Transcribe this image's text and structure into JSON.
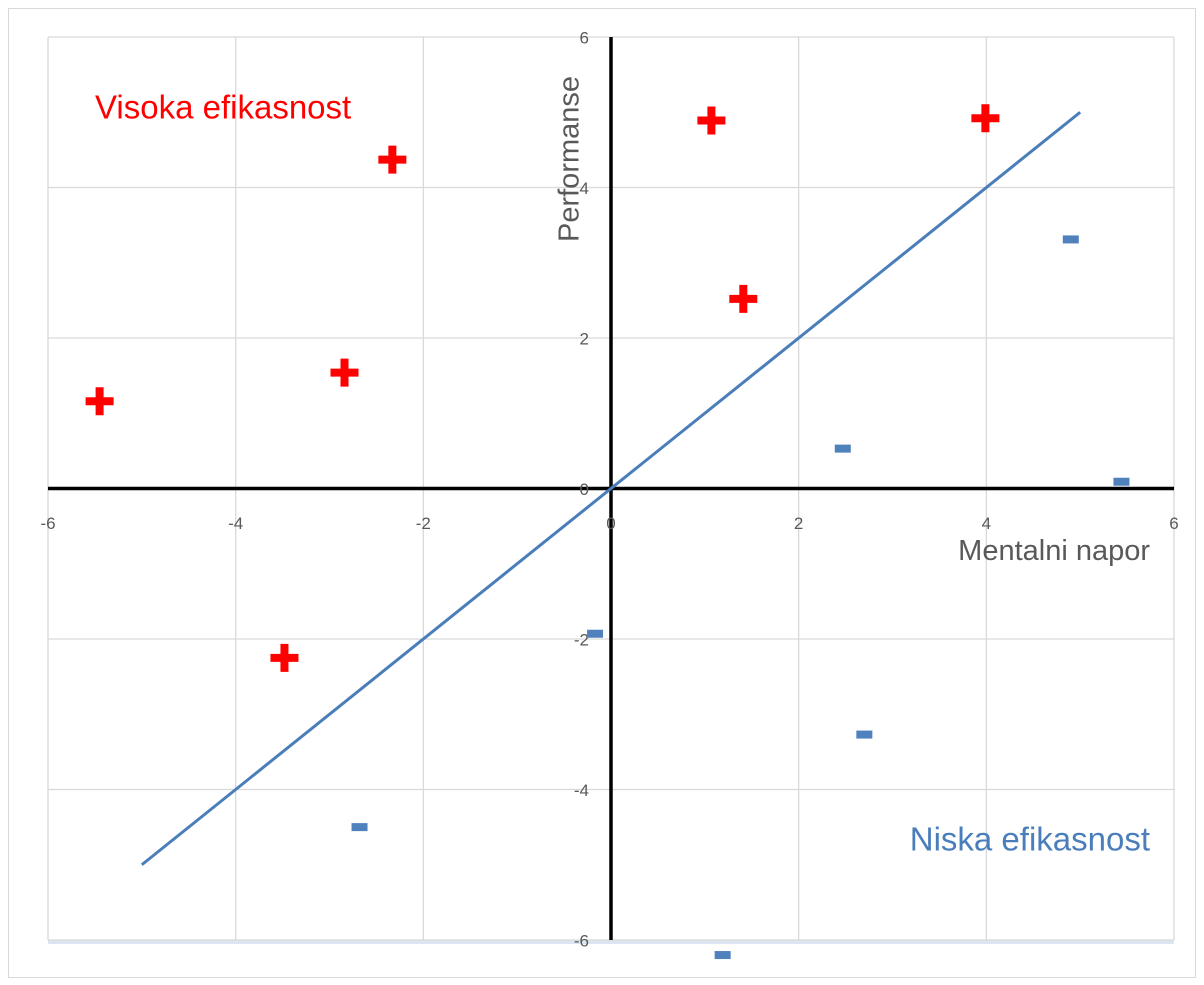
{
  "chart_data": {
    "type": "scatter",
    "x_label": "Mentalni napor",
    "y_label": "Performanse",
    "annotations": [
      {
        "text": "Visoka efikasnost",
        "color": "#ff0000"
      },
      {
        "text": "Niska efikasnost",
        "color": "#4a7ebb"
      }
    ],
    "xlim": [
      -6,
      6
    ],
    "ylim": [
      -6,
      6
    ],
    "xticks": [
      -6,
      -4,
      -2,
      0,
      2,
      4,
      6
    ],
    "yticks": [
      -6,
      -4,
      -2,
      0,
      2,
      4,
      6
    ],
    "grid": true,
    "series": [
      {
        "marker": "plus",
        "color": "#ff0000",
        "x": [
          -5.45,
          -2.84,
          -2.33,
          -3.48,
          1.07,
          1.41,
          3.99
        ],
        "values": [
          1.16,
          1.54,
          4.37,
          -2.25,
          4.89,
          2.52,
          4.92
        ]
      },
      {
        "marker": "dash",
        "color": "#4f81bd",
        "x": [
          4.9,
          2.47,
          5.44,
          -0.17,
          2.7,
          -2.68,
          1.19
        ],
        "values": [
          3.31,
          0.53,
          0.09,
          -1.93,
          -3.27,
          -4.5,
          -6.2
        ]
      },
      {
        "marker": "line",
        "color": "#4a7ebb",
        "x": [
          -5,
          5
        ],
        "values": [
          -5,
          5
        ]
      }
    ]
  }
}
